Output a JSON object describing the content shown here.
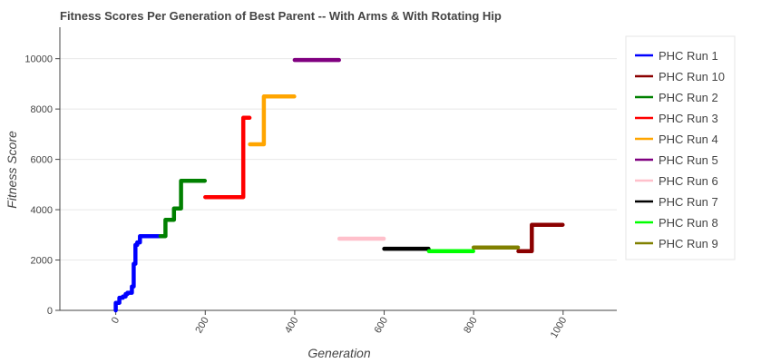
{
  "chart_data": {
    "type": "line",
    "title": "Fitness Scores Per Generation of Best Parent -- With Arms & With Rotating Hip",
    "xlabel": "Generation",
    "ylabel": "Fitness Score",
    "xlim": [
      -125,
      1120
    ],
    "ylim": [
      0,
      11250
    ],
    "x_ticks": [
      0,
      200,
      400,
      600,
      800,
      1000
    ],
    "y_ticks": [
      0,
      2000,
      4000,
      6000,
      8000,
      10000
    ],
    "grid": "horizontal",
    "legend_position": "right",
    "series": [
      {
        "name": "PHC Run 1",
        "color": "#0000ff",
        "points": [
          [
            0,
            0
          ],
          [
            0,
            300
          ],
          [
            8,
            300
          ],
          [
            8,
            500
          ],
          [
            16,
            500
          ],
          [
            16,
            550
          ],
          [
            22,
            550
          ],
          [
            22,
            650
          ],
          [
            26,
            650
          ],
          [
            26,
            700
          ],
          [
            36,
            700
          ],
          [
            36,
            950
          ],
          [
            40,
            950
          ],
          [
            40,
            1850
          ],
          [
            44,
            1850
          ],
          [
            44,
            2600
          ],
          [
            48,
            2600
          ],
          [
            48,
            2700
          ],
          [
            54,
            2700
          ],
          [
            54,
            2950
          ],
          [
            99,
            2950
          ]
        ]
      },
      {
        "name": "PHC Run 10",
        "color": "#8b0000",
        "points": [
          [
            900,
            2350
          ],
          [
            930,
            2350
          ],
          [
            930,
            3400
          ],
          [
            999,
            3400
          ]
        ]
      },
      {
        "name": "PHC Run 2",
        "color": "#008000",
        "points": [
          [
            100,
            2950
          ],
          [
            111,
            2950
          ],
          [
            111,
            3600
          ],
          [
            130,
            3600
          ],
          [
            130,
            4050
          ],
          [
            146,
            4050
          ],
          [
            146,
            5150
          ],
          [
            199,
            5150
          ]
        ]
      },
      {
        "name": "PHC Run 3",
        "color": "#ff0000",
        "points": [
          [
            200,
            4500
          ],
          [
            285,
            4500
          ],
          [
            285,
            7650
          ],
          [
            299,
            7650
          ]
        ]
      },
      {
        "name": "PHC Run 4",
        "color": "#ffa500",
        "points": [
          [
            300,
            6600
          ],
          [
            331,
            6600
          ],
          [
            331,
            8500
          ],
          [
            399,
            8500
          ]
        ]
      },
      {
        "name": "PHC Run 5",
        "color": "#800080",
        "points": [
          [
            400,
            9950
          ],
          [
            499,
            9950
          ]
        ]
      },
      {
        "name": "PHC Run 6",
        "color": "#ffc0cb",
        "points": [
          [
            500,
            2850
          ],
          [
            599,
            2850
          ]
        ]
      },
      {
        "name": "PHC Run 7",
        "color": "#000000",
        "points": [
          [
            600,
            2450
          ],
          [
            699,
            2450
          ]
        ]
      },
      {
        "name": "PHC Run 8",
        "color": "#00ff00",
        "points": [
          [
            700,
            2350
          ],
          [
            799,
            2350
          ]
        ]
      },
      {
        "name": "PHC Run 9",
        "color": "#808000",
        "points": [
          [
            800,
            2500
          ],
          [
            899,
            2500
          ]
        ]
      }
    ]
  }
}
